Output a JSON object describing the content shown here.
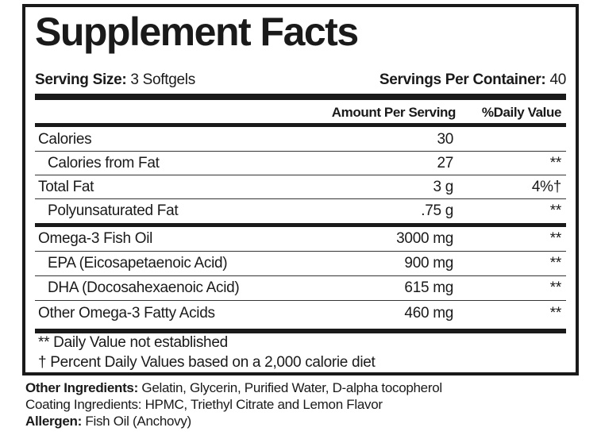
{
  "title": "Supplement Facts",
  "serving_size": {
    "label": "Serving Size:",
    "value": "3 Softgels"
  },
  "servings_per_container": {
    "label": "Servings Per Container:",
    "value": "40"
  },
  "header": {
    "amount": "Amount Per Serving",
    "dv": "%Daily Value"
  },
  "rows": [
    {
      "name": "Calories",
      "amount": "30",
      "dv": ""
    },
    {
      "name": "Calories from Fat",
      "amount": "27",
      "dv": "**"
    },
    {
      "name": "Total Fat",
      "amount": "3 g",
      "dv": "4%†"
    },
    {
      "name": "Polyunsaturated Fat",
      "amount": ".75 g",
      "dv": "**"
    },
    {
      "name": "Omega-3 Fish Oil",
      "amount": "3000 mg",
      "dv": "**"
    },
    {
      "name": "EPA (Eicosapetaenoic Acid)",
      "amount": "900 mg",
      "dv": "**"
    },
    {
      "name": "DHA (Docosahexaenoic Acid)",
      "amount": "615 mg",
      "dv": "**"
    },
    {
      "name": "Other Omega-3 Fatty Acids",
      "amount": "460 mg",
      "dv": "**"
    }
  ],
  "footnotes": [
    "** Daily Value not established",
    "† Percent Daily Values based on a 2,000 calorie diet"
  ],
  "other_ingredients": {
    "label": "Other Ingredients:",
    "value": "Gelatin, Glycerin, Purified Water, D-alpha tocopherol"
  },
  "coating": "Coating Ingredients: HPMC, Triethyl Citrate and Lemon Flavor",
  "allergen": {
    "label": "Allergen:",
    "value": "Fish Oil (Anchovy)"
  }
}
